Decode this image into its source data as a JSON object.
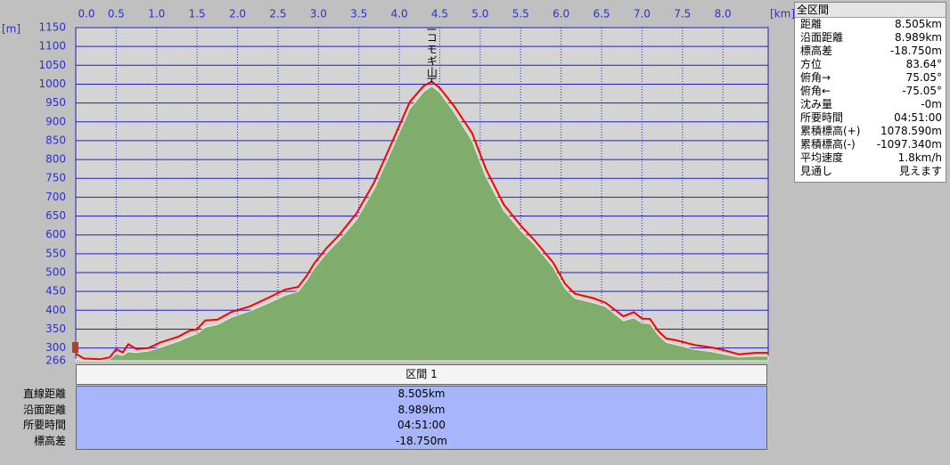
{
  "chart_data": {
    "type": "profile",
    "x_unit": "[km]",
    "y_unit": "[m]",
    "x": [
      0.0,
      0.1,
      0.3,
      0.42,
      0.5,
      0.58,
      0.65,
      0.75,
      0.9,
      1.05,
      1.27,
      1.4,
      1.5,
      1.6,
      1.75,
      1.93,
      2.15,
      2.37,
      2.59,
      2.75,
      2.85,
      2.95,
      3.1,
      3.25,
      3.47,
      3.69,
      3.91,
      4.13,
      4.3,
      4.4,
      4.5,
      4.68,
      4.9,
      5.07,
      5.29,
      5.5,
      5.67,
      5.9,
      6.05,
      6.17,
      6.4,
      6.55,
      6.77,
      6.9,
      7.0,
      7.1,
      7.2,
      7.3,
      7.43,
      7.65,
      7.87,
      8.0,
      8.2,
      8.4,
      8.56
    ],
    "series": [
      {
        "color": "#80ad6c",
        "values": [
          270,
          268,
          268,
          270,
          285,
          280,
          290,
          288,
          292,
          302,
          318,
          330,
          338,
          355,
          362,
          382,
          398,
          418,
          440,
          450,
          478,
          512,
          552,
          585,
          640,
          722,
          828,
          935,
          980,
          995,
          978,
          925,
          850,
          755,
          665,
          612,
          575,
          515,
          458,
          432,
          420,
          410,
          372,
          380,
          366,
          365,
          335,
          315,
          308,
          296,
          290,
          284,
          276,
          278,
          278
        ]
      },
      {
        "color": "#ff0000",
        "values": [
          285,
          272,
          270,
          275,
          297,
          288,
          310,
          297,
          300,
          315,
          330,
          345,
          350,
          373,
          375,
          396,
          410,
          432,
          455,
          462,
          490,
          525,
          565,
          598,
          657,
          740,
          846,
          953,
          995,
          1007,
          990,
          941,
          870,
          775,
          681,
          625,
          586,
          527,
          470,
          444,
          432,
          420,
          384,
          395,
          378,
          377,
          345,
          325,
          320,
          308,
          301,
          295,
          283,
          287,
          287
        ]
      }
    ],
    "xlim": [
      0,
      8.56
    ],
    "xticks": [
      {
        "value": 0,
        "label": "0.0"
      },
      0.5,
      {
        "value": 1,
        "label": "1.0"
      },
      1.5,
      {
        "value": 2,
        "label": "2.0"
      },
      2.5,
      {
        "value": 3,
        "label": "3.0"
      },
      3.5,
      {
        "value": 4,
        "label": "4.0"
      },
      4.5,
      {
        "value": 5,
        "label": "5.0"
      },
      5.5,
      {
        "value": 6,
        "label": "6.0"
      },
      6.5,
      {
        "value": 7,
        "label": "7.0"
      },
      7.5,
      {
        "value": 8,
        "label": "8.0"
      }
    ],
    "ylim": [
      266,
      1150
    ],
    "yticks": [
      266,
      300,
      350,
      400,
      450,
      500,
      550,
      600,
      650,
      700,
      750,
      800,
      850,
      900,
      950,
      1000,
      1050,
      1100,
      1150
    ],
    "grid": true,
    "annotations": [
      {
        "x": 4.4,
        "label": "コモギ山"
      }
    ]
  },
  "summary": {
    "title": "全区間",
    "rows": [
      [
        "距離",
        "8.505km"
      ],
      [
        "沿面距離",
        "8.989km"
      ],
      [
        "標高差",
        "-18.750m"
      ],
      [
        "方位",
        "83.64°"
      ],
      [
        "俯角→",
        "75.05°"
      ],
      [
        "俯角←",
        "-75.05°"
      ],
      [
        "沈み量",
        "-0m"
      ],
      [
        "所要時間",
        "04:51:00"
      ],
      [
        "累積標高(+)",
        "1078.590m"
      ],
      [
        "累積標高(-)",
        "-1097.340m"
      ],
      [
        "平均速度",
        "1.8km/h"
      ],
      [
        "見通し",
        "見えます"
      ]
    ]
  },
  "section": {
    "title": "区間 1",
    "rows": [
      [
        "直線距離",
        "8.505km"
      ],
      [
        "沿面距離",
        "8.989km"
      ],
      [
        "所要時間",
        "04:51:00"
      ],
      [
        "標高差",
        "-18.750m"
      ]
    ]
  }
}
